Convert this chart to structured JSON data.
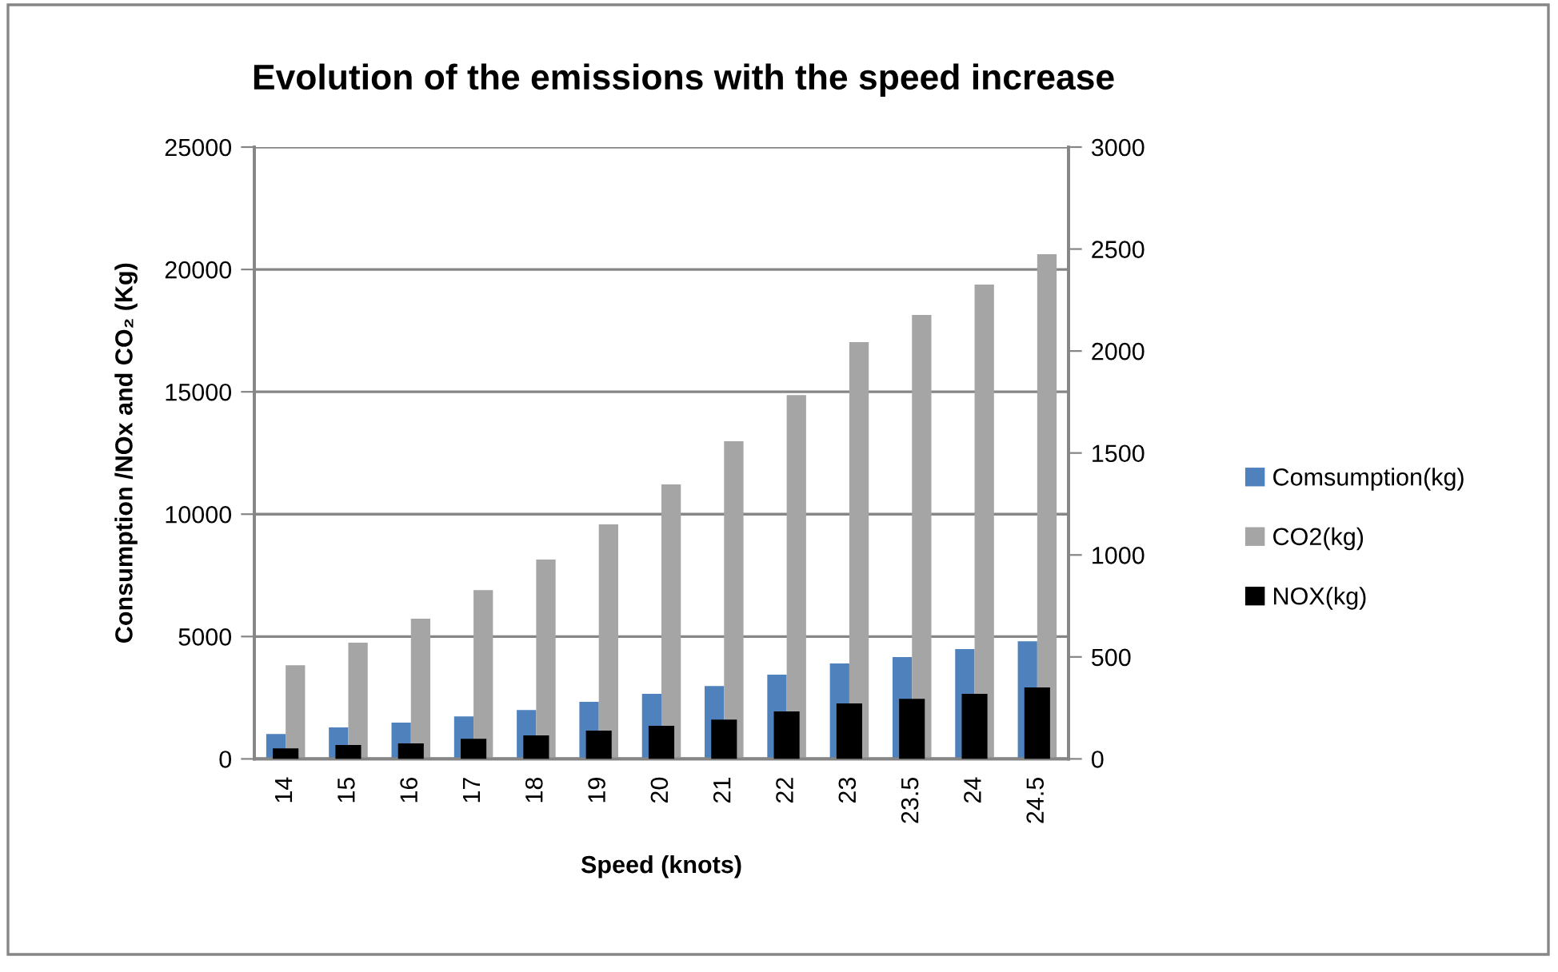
{
  "chart_data": {
    "type": "bar",
    "title": "Evolution of the emissions with the speed increase",
    "xlabel": "Speed (knots)",
    "ylabel": "Consumption /NOx and CO₂ (Kg)",
    "categories": [
      "14",
      "15",
      "16",
      "17",
      "18",
      "19",
      "20",
      "21",
      "22",
      "23",
      "23.5",
      "24",
      "24.5"
    ],
    "series": [
      {
        "name": "Comsumption(kg)",
        "color": "#4f81bd",
        "values": [
          1020,
          1290,
          1480,
          1740,
          2000,
          2330,
          2660,
          2980,
          3440,
          3900,
          4160,
          4490,
          4810
        ]
      },
      {
        "name": "CO2(kg)",
        "color": "#a5a5a5",
        "values": [
          3830,
          4750,
          5730,
          6900,
          8150,
          9580,
          11220,
          12980,
          14870,
          17030,
          18140,
          19380,
          20620
        ]
      },
      {
        "name": "NOX(kg)",
        "color": "#000000",
        "axis": "y2",
        "values": [
          52,
          68,
          76,
          99,
          115,
          139,
          162,
          193,
          233,
          272,
          295,
          319,
          350
        ]
      }
    ],
    "ylim": [
      0,
      25000
    ],
    "yticks": [
      0,
      5000,
      10000,
      15000,
      20000,
      25000
    ],
    "y2lim": [
      0,
      3000
    ],
    "y2ticks": [
      0,
      500,
      1000,
      1500,
      2000,
      2500,
      3000
    ],
    "grid": "y",
    "legend": "right"
  }
}
